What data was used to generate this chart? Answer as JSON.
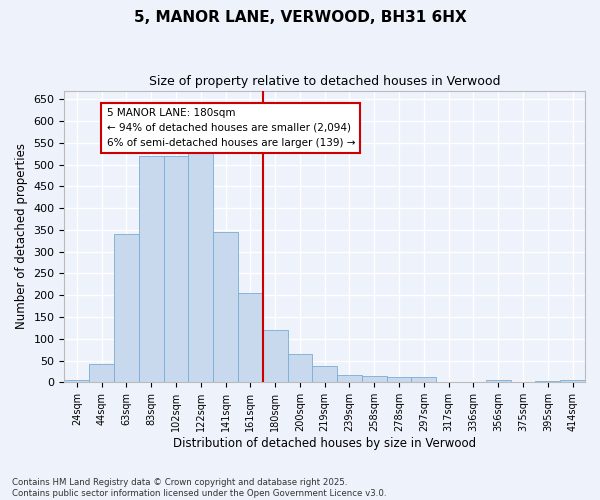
{
  "title": "5, MANOR LANE, VERWOOD, BH31 6HX",
  "subtitle": "Size of property relative to detached houses in Verwood",
  "xlabel": "Distribution of detached houses by size in Verwood",
  "ylabel": "Number of detached properties",
  "bar_color": "#c8d8ed",
  "bar_edge_color": "#7aadd4",
  "background_color": "#eef2fb",
  "grid_color": "#ffffff",
  "vline_color": "#cc0000",
  "annotation_text": "5 MANOR LANE: 180sqm\n← 94% of detached houses are smaller (2,094)\n6% of semi-detached houses are larger (139) →",
  "annotation_box_color": "#cc0000",
  "categories": [
    "24sqm",
    "44sqm",
    "63sqm",
    "83sqm",
    "102sqm",
    "122sqm",
    "141sqm",
    "161sqm",
    "180sqm",
    "200sqm",
    "219sqm",
    "239sqm",
    "258sqm",
    "278sqm",
    "297sqm",
    "317sqm",
    "336sqm",
    "356sqm",
    "375sqm",
    "395sqm",
    "414sqm"
  ],
  "values": [
    5,
    42,
    340,
    520,
    520,
    537,
    345,
    205,
    120,
    65,
    37,
    18,
    15,
    13,
    12,
    0,
    0,
    5,
    0,
    3,
    5
  ],
  "ylim": [
    0,
    670
  ],
  "yticks": [
    0,
    50,
    100,
    150,
    200,
    250,
    300,
    350,
    400,
    450,
    500,
    550,
    600,
    650
  ],
  "vline_idx": 8,
  "footer": "Contains HM Land Registry data © Crown copyright and database right 2025.\nContains public sector information licensed under the Open Government Licence v3.0.",
  "figsize": [
    6.0,
    5.0
  ],
  "dpi": 100
}
